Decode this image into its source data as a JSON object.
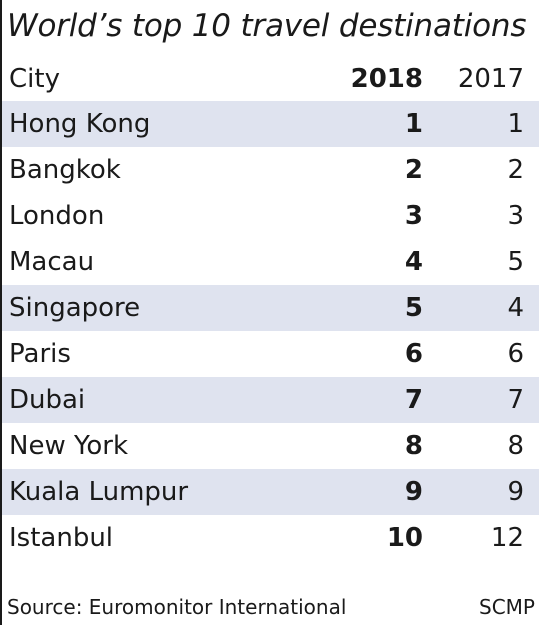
{
  "chart_data": {
    "type": "table",
    "title": "World’s top 10 travel destinations",
    "columns": [
      "City",
      "2018",
      "2017"
    ],
    "rows": [
      {
        "city": "Hong Kong",
        "rank_2018": "1",
        "rank_2017": "1",
        "shaded": true
      },
      {
        "city": "Bangkok",
        "rank_2018": "2",
        "rank_2017": "2",
        "shaded": false
      },
      {
        "city": "London",
        "rank_2018": "3",
        "rank_2017": "3",
        "shaded": false
      },
      {
        "city": "Macau",
        "rank_2018": "4",
        "rank_2017": "5",
        "shaded": false
      },
      {
        "city": "Singapore",
        "rank_2018": "5",
        "rank_2017": "4",
        "shaded": true
      },
      {
        "city": "Paris",
        "rank_2018": "6",
        "rank_2017": "6",
        "shaded": false
      },
      {
        "city": "Dubai",
        "rank_2018": "7",
        "rank_2017": "7",
        "shaded": true
      },
      {
        "city": "New York",
        "rank_2018": "8",
        "rank_2017": "8",
        "shaded": false
      },
      {
        "city": "Kuala Lumpur",
        "rank_2018": "9",
        "rank_2017": "9",
        "shaded": true
      },
      {
        "city": "Istanbul",
        "rank_2018": "10",
        "rank_2017": "12",
        "shaded": false
      }
    ],
    "source": "Source: Euromonitor International",
    "credit": "SCMP",
    "shade_color": "#dfe3ef"
  }
}
